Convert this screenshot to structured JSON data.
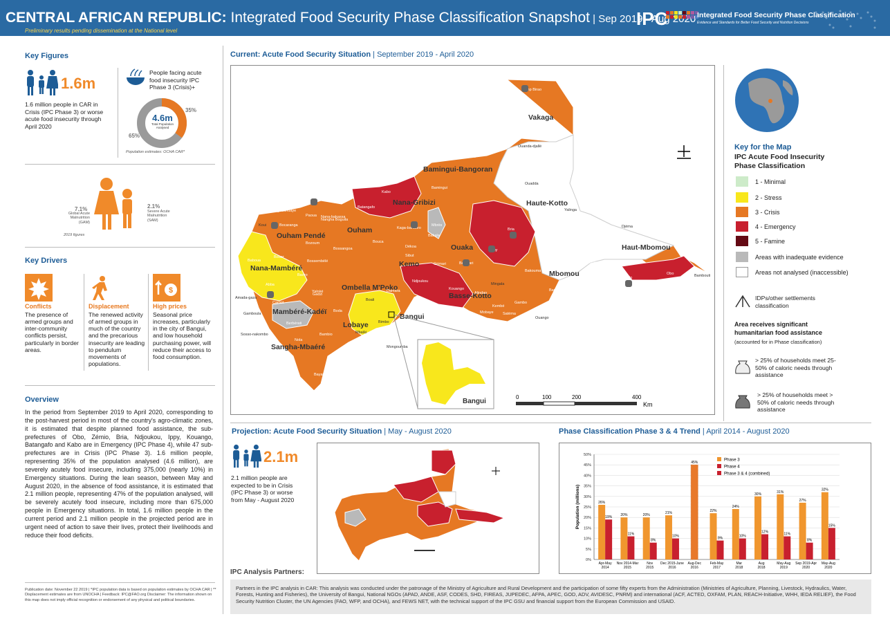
{
  "header": {
    "title_bold": "CENTRAL AFRICAN REPUBLIC:",
    "title_rest": " Integrated Food Security Phase Classification Snapshot",
    "period": " | Sep 2019 - Aug 2020",
    "subtitle": "Preliminary results pending dissemination at the National level",
    "logo": "IPC",
    "logo_name": "Integrated Food Security Phase Classification",
    "logo_tag": "Evidence and Standards for Better Food Security and Nutrition Decisions"
  },
  "key_figures": {
    "title": "Key Figures",
    "people_number": "1.6m",
    "people_text": "1.6 million people in CAR in Crisis (IPC Phase 3) or worse acute food insecurity through April 2020",
    "facing_text": "People facing acute food insecurity IPC Phase 3 (Crisis)+",
    "donut_total": "4.6m",
    "donut_label": "Total Population Analysed",
    "donut_pct_a": "35%",
    "donut_pct_b": "65%",
    "donut_value": 0.35,
    "pop_note": "Population estimates: OCHA CAR*",
    "gam_pct": "7.1%",
    "gam_label": "Global Acute Malnutrition (GAM)",
    "sam_pct": "2.1%",
    "sam_label": "Severe Acute Malnutrition (SAM)",
    "year_note": "2019 figures"
  },
  "drivers": {
    "title": "Key Drivers",
    "items": [
      {
        "label": "Conflicts",
        "text": "The presence of armed groups and inter-community conflicts persist, particularly in border areas."
      },
      {
        "label": "Displacement",
        "text": "The renewed activity of armed groups in much of the country and the precarious insecurity are leading to pendulum movements of populations."
      },
      {
        "label": "High prices",
        "text": "Seasonal price increases, particularly in the city of Bangui, and low household purchasing power, will reduce their access to food consumption."
      }
    ]
  },
  "overview": {
    "title": "Overview",
    "text": "In the period from September 2019 to April 2020, corresponding to the post-harvest period in most of the country's agro-climatic zones, it is estimated that despite planned food assistance, the sub-prefectures of Obo, Zémio, Bria, Ndjoukou, Ippy, Kouango, Batangafo and Kabo are in Emergency (IPC Phase 4), while 47 sub-prefectures are in Crisis (IPC Phase 3). 1.6 million people, representing 35% of the population analysed (4.6 million), are severely acutely food insecure, including 375,000 (nearly 10%) in Emergency situations. During the lean season, between May and August 2020, in the absence of food assistance, it is estimated that 2.1 million people, representing 47% of the population analysed, will be severely acutely food insecure, including more than 675,000 people in Emergency situations. In total, 1.6 million people in the current period and 2.1 million people in the projected period are in urgent need of action to save their lives, protect their livelihoods and reduce their food deficits."
  },
  "footer_note": "Publication date: November 22 2019 | *IPC population data is based on population estimates by OCHA CAR | ** Displacement estimates are from UNOCHA | Feedback: IPC@FAO.org Disclaimer: The information shown on this map does not imply official recognition or endorsement of any physical and political boundaries.",
  "current_map": {
    "title": "Current: Acute Food Security Situation",
    "period": "September 2019 - April 2020",
    "regions": [
      "Vakaga",
      "Bamingui-Bangoran",
      "Haute-Kotto",
      "Nana-Gribizi",
      "Ouham",
      "Ouham Pendé",
      "Haut-Mbomou",
      "Nana-Mambéré",
      "Kemo",
      "Ouaka",
      "Mbomou",
      "Ombella M'Poko",
      "Basse-Kotto",
      "Mambéré-Kadéï",
      "Lobaye",
      "Bangui",
      "Sangha-Mbaéré"
    ],
    "towns": [
      "Camp Birao",
      "Birao",
      "Ouanda-djallé",
      "Ndélé",
      "Ouadda",
      "Yalinga",
      "Djéma",
      "Bamingui",
      "Kabo",
      "Batangafo",
      "Markounda",
      "Bria",
      "Ippy",
      "Bambouti",
      "Obo",
      "Zémio",
      "Rafaï",
      "Bakouma",
      "Bangassou",
      "Ouango",
      "Kouango",
      "Mingala",
      "Alindao",
      "Mobaye",
      "Kembé",
      "Satéma",
      "Gambo",
      "Bambari",
      "Grimari",
      "Dékoa",
      "Sibut",
      "Damara",
      "Boali",
      "Mbaïki",
      "Mongoumba",
      "Bayanga",
      "Nola",
      "Berbérati",
      "Gamboula",
      "Amada-gaza",
      "Carnot",
      "Abba",
      "Baoro",
      "Bouar",
      "Baboua",
      "Bocaranga",
      "Ngaoundaye",
      "Koui",
      "Bozoum",
      "Paoua",
      "Bossangoa",
      "Bouca",
      "Kaga-bandoro",
      "Mbrès",
      "Bakala",
      "Ndjoukou",
      "Yaloké",
      "Bossembélé",
      "Boda",
      "Bimbo",
      "Sosso-nakombo",
      "Bambio",
      "Gadzi",
      "Nana-bakassa",
      "Nangha Boguila"
    ],
    "inset": "Bangui",
    "scale_ticks": [
      "0",
      "100",
      "200",
      "400"
    ],
    "scale_unit": "Km"
  },
  "key": {
    "title": "Key for the Map",
    "subtitle": "IPC Acute Food Insecurity Phase Classification",
    "phases": [
      {
        "label": "1 - Minimal",
        "color": "#cdebc9"
      },
      {
        "label": "2 - Stress",
        "color": "#f8e71c"
      },
      {
        "label": "3 - Crisis",
        "color": "#e67823"
      },
      {
        "label": "4 - Emergency",
        "color": "#c8202e"
      },
      {
        "label": "5 - Famine",
        "color": "#640a14"
      },
      {
        "label": "Areas with inadequate evidence",
        "color": "#b9b9b9"
      },
      {
        "label": "Areas not analysed (inaccessible)",
        "color": "#ffffff"
      }
    ],
    "idp": "IDPs/other settlements classification",
    "assistance_title": "Area receives significant humanitarian food assistance",
    "assistance_note": "(accounted for in Phase classification)",
    "assist_1": "> 25% of households meet 25-50% of caloric needs through assistance",
    "assist_2": "> 25% of households meet > 50% of caloric needs through assistance"
  },
  "projection": {
    "title": "Projection: Acute Food Security Situation",
    "period": "May - August 2020",
    "number": "2.1m",
    "text": "2.1 million people are expected to be in Crisis (IPC Phase 3) or worse from May - August 2020"
  },
  "trend": {
    "title": "Phase Classification Phase 3 & 4 Trend",
    "period": "April 2014 - August 2020"
  },
  "chart_data": {
    "type": "bar",
    "title": "Phase Classification Phase 3 & 4 Trend",
    "ylabel": "Population (millions)",
    "ylim": [
      0,
      50
    ],
    "yticks": [
      "0%",
      "5%",
      "10%",
      "15%",
      "20%",
      "25%",
      "30%",
      "35%",
      "40%",
      "45%",
      "50%"
    ],
    "categories": [
      "Apr-May 2014",
      "Nov 2014-Mar 2015",
      "Nov 2015",
      "Dec 2015-June 2016",
      "Aug-Dec 2016",
      "Feb-May 2017",
      "Mar 2018",
      "Aug 2018",
      "May-Aug 2019",
      "Sep 2019-Apr 2020",
      "May-Aug 2020"
    ],
    "series": [
      {
        "name": "Phase 3",
        "color": "#f0962e",
        "values": [
          26,
          20,
          20,
          21,
          null,
          22,
          24,
          30,
          31,
          27,
          32
        ]
      },
      {
        "name": "Phase 4",
        "color": "#c8202e",
        "values": [
          null,
          null,
          null,
          null,
          null,
          null,
          null,
          null,
          null,
          null,
          null
        ]
      },
      {
        "name": "Phase 3 & 4 (combined)",
        "color": "#e8792a",
        "values": [
          null,
          null,
          null,
          null,
          45,
          null,
          null,
          null,
          null,
          null,
          null
        ]
      }
    ],
    "phase4_values": [
      19,
      11,
      8,
      10,
      null,
      9,
      10,
      12,
      11,
      8,
      15
    ],
    "labels_p3": [
      "26%",
      "20%",
      "20%",
      "21%",
      "45%",
      "22%",
      "24%",
      "30%",
      "31%",
      "27%",
      "32%"
    ],
    "labels_p4": [
      "19%",
      "11%",
      "8%",
      "10%",
      "",
      "9%",
      "10%",
      "12%",
      "11%",
      "8%",
      "15%"
    ],
    "legend": [
      "Phase 3",
      "Phase 4",
      "Phase 3 & 4 (combined)"
    ]
  },
  "partners": {
    "title": "IPC Analysis Partners:",
    "text": "Partners in the IPC analysis in CAR: This analysis was conducted under the patronage of the Ministry of Agriculture and Rural Development and the participation of some fifty experts from the Administration (Ministries of Agriculture, Planning, Livestock, Hydraulics, Water, Forests, Hunting and Fisheries), the University of Bangui, National NGOs (APAD, ANDE, ASF, CODES, SHD, FIREAS, JUPEDEC, AFPA, APEC, GOD, ADV, AVIDESC, PNRM) and international (ACF, ACTED, OXFAM, PLAN, REACH-Initiative, WHH, IEDA RELIEF), the Food Security Nutrition Cluster, the UN Agencies (FAO, WFP, and OCHA), and FEWS NET, with the technical support of the IPC GSU and financial support from the European Commission and USAID."
  }
}
